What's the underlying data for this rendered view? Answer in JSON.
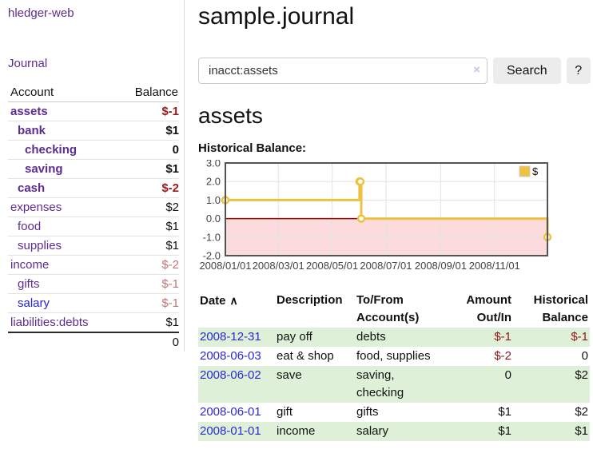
{
  "sidebar": {
    "brand": "hledger-web",
    "nav": [
      {
        "label": "Journal"
      }
    ],
    "accounts_table": {
      "col_account": "Account",
      "col_balance": "Balance",
      "rows": [
        {
          "name": "assets",
          "depth": 0,
          "bold": true,
          "balance": "$-1",
          "balance_style": "neg-strong"
        },
        {
          "name": "bank",
          "depth": 1,
          "bold": true,
          "balance": "$1",
          "balance_style": "pos"
        },
        {
          "name": "checking",
          "depth": 2,
          "bold": true,
          "balance": "0",
          "balance_style": "pos"
        },
        {
          "name": "saving",
          "depth": 2,
          "bold": true,
          "balance": "$1",
          "balance_style": "pos"
        },
        {
          "name": "cash",
          "depth": 1,
          "bold": true,
          "balance": "$-2",
          "balance_style": "neg-strong"
        },
        {
          "name": "expenses",
          "depth": 0,
          "bold": false,
          "balance": "$2",
          "balance_style": "pos"
        },
        {
          "name": "food",
          "depth": 1,
          "bold": false,
          "balance": "$1",
          "balance_style": "pos"
        },
        {
          "name": "supplies",
          "depth": 1,
          "bold": false,
          "balance": "$1",
          "balance_style": "pos"
        },
        {
          "name": "income",
          "depth": 0,
          "bold": false,
          "balance": "$-2",
          "balance_style": "neg-soft"
        },
        {
          "name": "gifts",
          "depth": 1,
          "bold": false,
          "balance": "$-1",
          "balance_style": "neg-soft"
        },
        {
          "name": "salary",
          "depth": 1,
          "bold": false,
          "balance": "$-1",
          "balance_style": "neg-soft",
          "link_color": "blue"
        },
        {
          "name": "liabilities:debts",
          "depth": 0,
          "bold": false,
          "balance": "$1",
          "balance_style": "pos"
        }
      ],
      "total": "0"
    }
  },
  "header": {
    "title": "sample.journal"
  },
  "search": {
    "value": "inacct:assets",
    "clear_icon": "×",
    "button_label": "Search",
    "help_label": "?"
  },
  "account_page": {
    "heading": "assets",
    "chart_label": "Historical Balance:"
  },
  "chart_data": {
    "type": "line",
    "style": "step",
    "title": "Historical Balance",
    "series": [
      {
        "name": "$",
        "color": "#edc240",
        "points": [
          [
            "2008-01-01",
            1
          ],
          [
            "2008-06-01",
            2
          ],
          [
            "2008-06-02",
            2
          ],
          [
            "2008-06-03",
            0
          ],
          [
            "2008-12-31",
            -1
          ]
        ]
      }
    ],
    "xlim": [
      "2008-01-01",
      "2008-12-31"
    ],
    "ylim": [
      -2,
      3
    ],
    "y_ticks": [
      3.0,
      2.0,
      1.0,
      0.0,
      -1.0,
      -2.0
    ],
    "x_ticks": [
      "2008/01/01",
      "2008/03/01",
      "2008/05/01",
      "2008/07/01",
      "2008/09/01",
      "2008/11/01"
    ],
    "grid": true,
    "legend": "$",
    "legend_position": "top-right",
    "negative_fill": "#fbdbdb",
    "zero_line_color": "#a40000",
    "grid_color": "#e3e3e3",
    "border_color": "#545454"
  },
  "register_table": {
    "headers": {
      "date": "Date",
      "date_sort_icon": "∧",
      "description": "Description",
      "accounts": "To/From Account(s)",
      "amount": "Amount Out/In",
      "balance": "Historical Balance"
    },
    "rows": [
      {
        "date": "2008-12-31",
        "description": "pay off",
        "accounts": "debts",
        "amount": "$-1",
        "amount_negative": true,
        "balance": "$-1",
        "balance_negative": true
      },
      {
        "date": "2008-06-03",
        "description": "eat & shop",
        "accounts": "food, supplies",
        "amount": "$-2",
        "amount_negative": true,
        "balance": "0",
        "balance_negative": false
      },
      {
        "date": "2008-06-02",
        "description": "save",
        "accounts": "saving, checking",
        "amount": "0",
        "amount_negative": false,
        "balance": "$2",
        "balance_negative": false
      },
      {
        "date": "2008-06-01",
        "description": "gift",
        "accounts": "gifts",
        "amount": "$1",
        "amount_negative": false,
        "balance": "$2",
        "balance_negative": false
      },
      {
        "date": "2008-01-01",
        "description": "income",
        "accounts": "salary",
        "amount": "$1",
        "amount_negative": false,
        "balance": "$1",
        "balance_negative": false
      }
    ]
  }
}
